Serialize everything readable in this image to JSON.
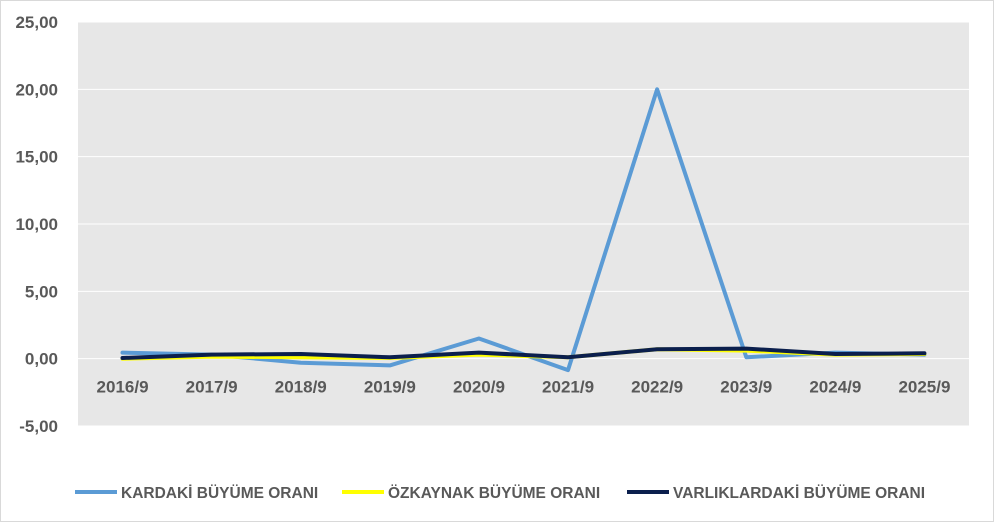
{
  "chart_data": {
    "type": "line",
    "title": "",
    "xlabel": "",
    "ylabel": "",
    "categories": [
      "2016/9",
      "2017/9",
      "2018/9",
      "2019/9",
      "2020/9",
      "2021/9",
      "2022/9",
      "2023/9",
      "2024/9",
      "2025/9"
    ],
    "ylim": [
      -5,
      25
    ],
    "y_ticks": [
      "-5,00",
      "0,00",
      "5,00",
      "10,00",
      "15,00",
      "20,00",
      "25,00"
    ],
    "y_tick_values": [
      -5,
      0,
      5,
      10,
      15,
      20,
      25
    ],
    "grid": true,
    "legend_position": "bottom",
    "series": [
      {
        "name": "KARDAKİ BÜYÜME ORANI",
        "color": "#5b9bd5",
        "values": [
          0.45,
          0.3,
          -0.3,
          -0.5,
          1.5,
          -0.85,
          20.0,
          0.1,
          0.45,
          0.3
        ]
      },
      {
        "name": "ÖZKAYNAK BÜYÜME ORANI",
        "color": "#ffff00",
        "values": [
          0.0,
          0.15,
          0.1,
          0.05,
          0.3,
          0.1,
          0.7,
          0.6,
          0.3,
          0.35
        ]
      },
      {
        "name": "VARLIKLARDAKİ BÜYÜME ORANI",
        "color": "#0b1f4d",
        "values": [
          0.05,
          0.3,
          0.35,
          0.1,
          0.45,
          0.1,
          0.7,
          0.75,
          0.35,
          0.4
        ]
      }
    ]
  }
}
